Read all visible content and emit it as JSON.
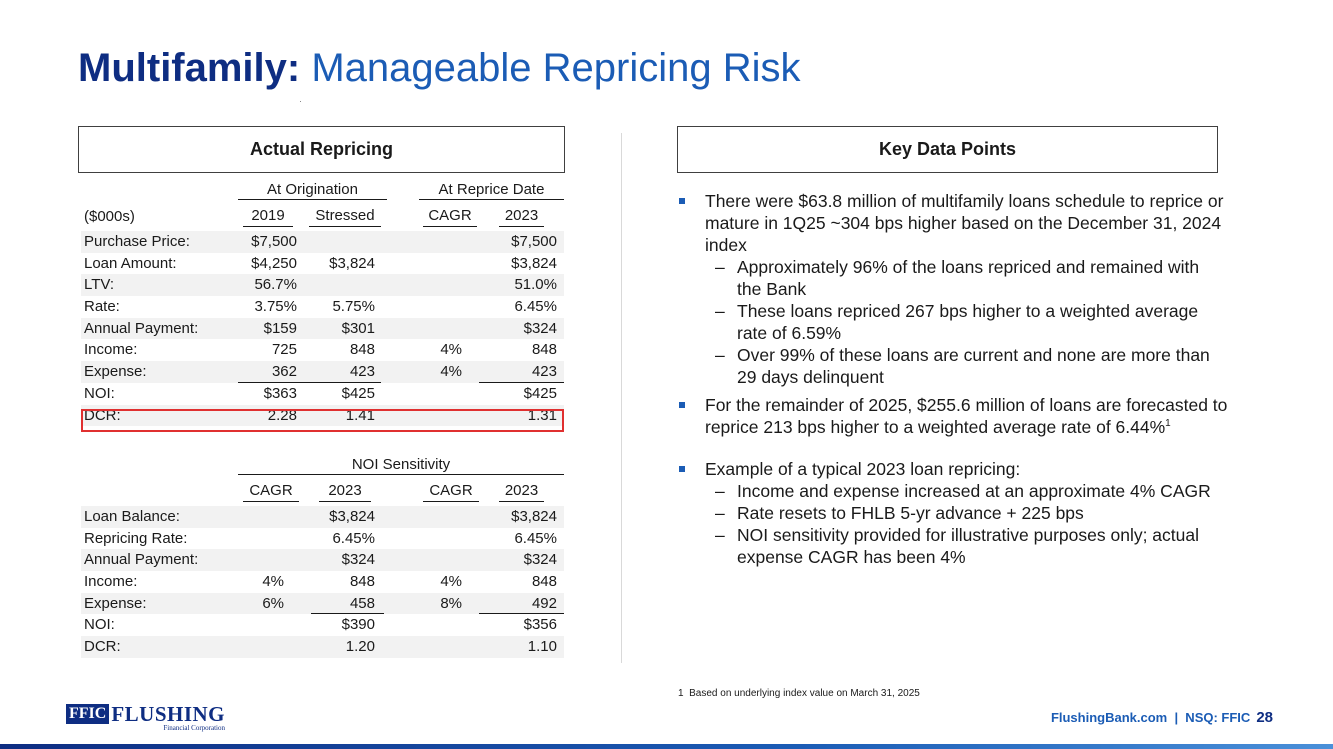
{
  "title": {
    "bold": "Multifamily:",
    "rest": "Manageable Repricing Risk"
  },
  "left_header": "Actual Repricing",
  "right_header": "Key Data Points",
  "repricing": {
    "group1": "At Origination",
    "group2": "At Reprice Date",
    "units": "($000s)",
    "cols": [
      "2019",
      "Stressed",
      "CAGR",
      "2023"
    ],
    "rows": [
      {
        "label": "Purchase Price:",
        "v": [
          "$7,500",
          "",
          "",
          "$7,500"
        ]
      },
      {
        "label": "Loan Amount:",
        "v": [
          "$4,250",
          "$3,824",
          "",
          "$3,824"
        ]
      },
      {
        "label": "LTV:",
        "v": [
          "56.7%",
          "",
          "",
          "51.0%"
        ]
      },
      {
        "label": "Rate:",
        "v": [
          "3.75%",
          "5.75%",
          "",
          "6.45%"
        ]
      },
      {
        "label": "Annual Payment:",
        "v": [
          "$159",
          "$301",
          "",
          "$324"
        ]
      },
      {
        "label": "Income:",
        "v": [
          "725",
          "848",
          "4%",
          "848"
        ]
      },
      {
        "label": "Expense:",
        "v": [
          "362",
          "423",
          "4%",
          "423"
        ]
      },
      {
        "label": "NOI:",
        "v": [
          "$363",
          "$425",
          "",
          "$425"
        ]
      },
      {
        "label": "DCR:",
        "v": [
          "2.28",
          "1.41",
          "",
          "1.31"
        ]
      }
    ]
  },
  "sensitivity": {
    "group": "NOI Sensitivity",
    "cols": [
      "CAGR",
      "2023",
      "CAGR",
      "2023"
    ],
    "rows": [
      {
        "label": "Loan Balance:",
        "v": [
          "",
          "$3,824",
          "",
          "$3,824"
        ]
      },
      {
        "label": "Repricing Rate:",
        "v": [
          "",
          "6.45%",
          "",
          "6.45%"
        ]
      },
      {
        "label": "Annual Payment:",
        "v": [
          "",
          "$324",
          "",
          "$324"
        ]
      },
      {
        "label": "Income:",
        "v": [
          "4%",
          "848",
          "4%",
          "848"
        ]
      },
      {
        "label": "Expense:",
        "v": [
          "6%",
          "458",
          "8%",
          "492"
        ]
      },
      {
        "label": "NOI:",
        "v": [
          "",
          "$390",
          "",
          "$356"
        ]
      },
      {
        "label": "DCR:",
        "v": [
          "",
          "1.20",
          "",
          "1.10"
        ]
      }
    ]
  },
  "bullets": {
    "b1": "There were $63.8 million of multifamily loans schedule to reprice or mature in 1Q25 ~304 bps higher based on the December 31, 2024 index",
    "b1_subs": [
      "Approximately 96% of the loans repriced and remained with the Bank",
      "These loans repriced 267 bps higher to a weighted average rate of 6.59%",
      "Over 99% of these loans are current and none are more than 29 days delinquent"
    ],
    "b2": "For the remainder of 2025, $255.6 million of loans are forecasted to reprice 213 bps higher to a weighted average rate of 6.44%",
    "b2_sup": "1",
    "b3": "Example of a typical 2023 loan repricing:",
    "b3_subs": [
      "Income and expense increased at an approximate 4% CAGR",
      "Rate resets to FHLB 5-yr advance + 225 bps",
      "NOI sensitivity provided for illustrative purposes only; actual expense CAGR has been 4%"
    ],
    "dash": "–"
  },
  "footnote": {
    "num": "1",
    "text": "Based on underlying index value on March 31, 2025"
  },
  "logo": {
    "box": "FFIC",
    "word": "FLUSHING",
    "sub": "Financial Corporation"
  },
  "footer": {
    "site": "FlushingBank.com  |  NSQ: FFIC",
    "page": "28"
  },
  "colors": {
    "navy": "#0e2d82",
    "blue": "#1b5cb5",
    "highlight": "#e03030"
  }
}
